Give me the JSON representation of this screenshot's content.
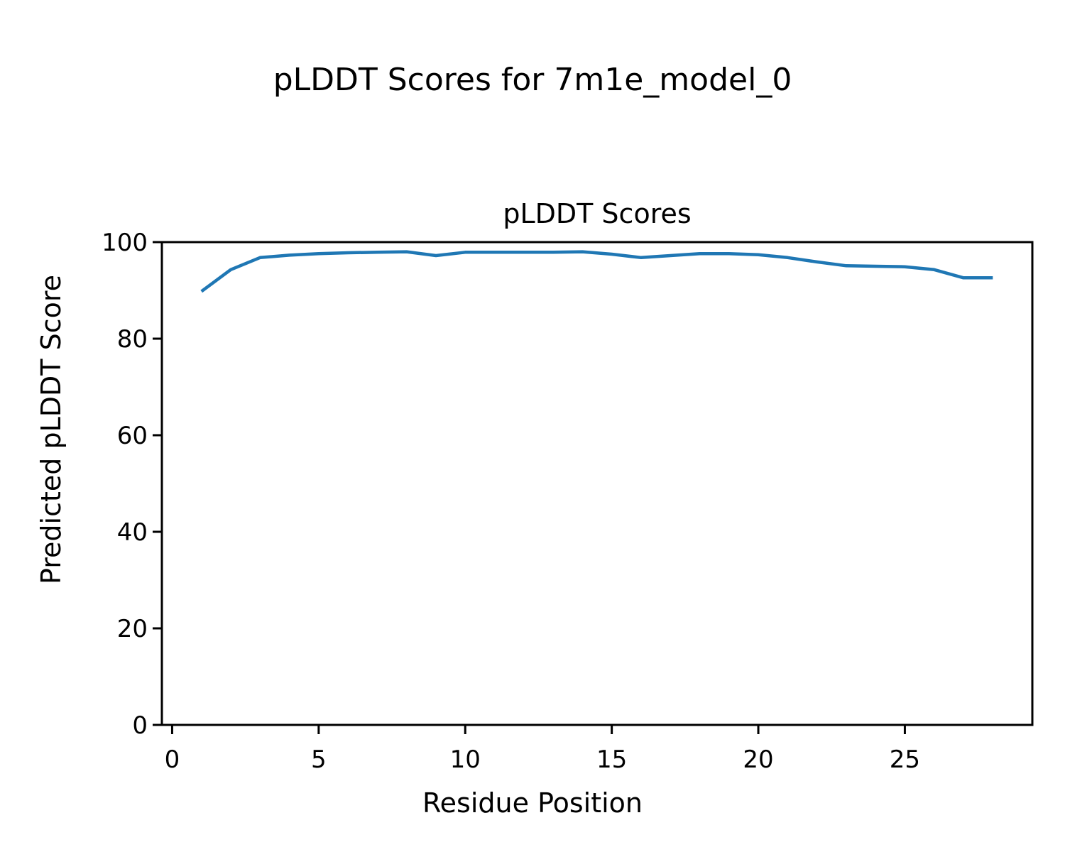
{
  "figure": {
    "suptitle": "pLDDT Scores for 7m1e_model_0"
  },
  "chart_data": {
    "type": "line",
    "title": "pLDDT Scores",
    "xlabel": "Residue Position",
    "ylabel": "Predicted pLDDT Score",
    "x": [
      1,
      2,
      3,
      4,
      5,
      6,
      7,
      8,
      9,
      10,
      11,
      12,
      13,
      14,
      15,
      16,
      17,
      18,
      19,
      20,
      21,
      22,
      23,
      24,
      25,
      26,
      27,
      28
    ],
    "series": [
      {
        "name": "pLDDT",
        "values": [
          89.8,
          94.3,
          96.8,
          97.3,
          97.6,
          97.8,
          97.9,
          98.0,
          97.2,
          97.9,
          97.9,
          97.9,
          97.9,
          98.0,
          97.5,
          96.8,
          97.2,
          97.6,
          97.6,
          97.4,
          96.8,
          95.9,
          95.1,
          95.0,
          94.9,
          94.3,
          92.6,
          92.6
        ]
      }
    ],
    "xticks": [
      0,
      5,
      10,
      15,
      20,
      25
    ],
    "yticks": [
      0,
      20,
      40,
      60,
      80,
      100
    ],
    "xlim": [
      -0.35,
      29.35
    ],
    "ylim": [
      0,
      100
    ],
    "line_color": "#1f77b4",
    "axis_color": "#000000",
    "grid": false,
    "legend": "none"
  }
}
